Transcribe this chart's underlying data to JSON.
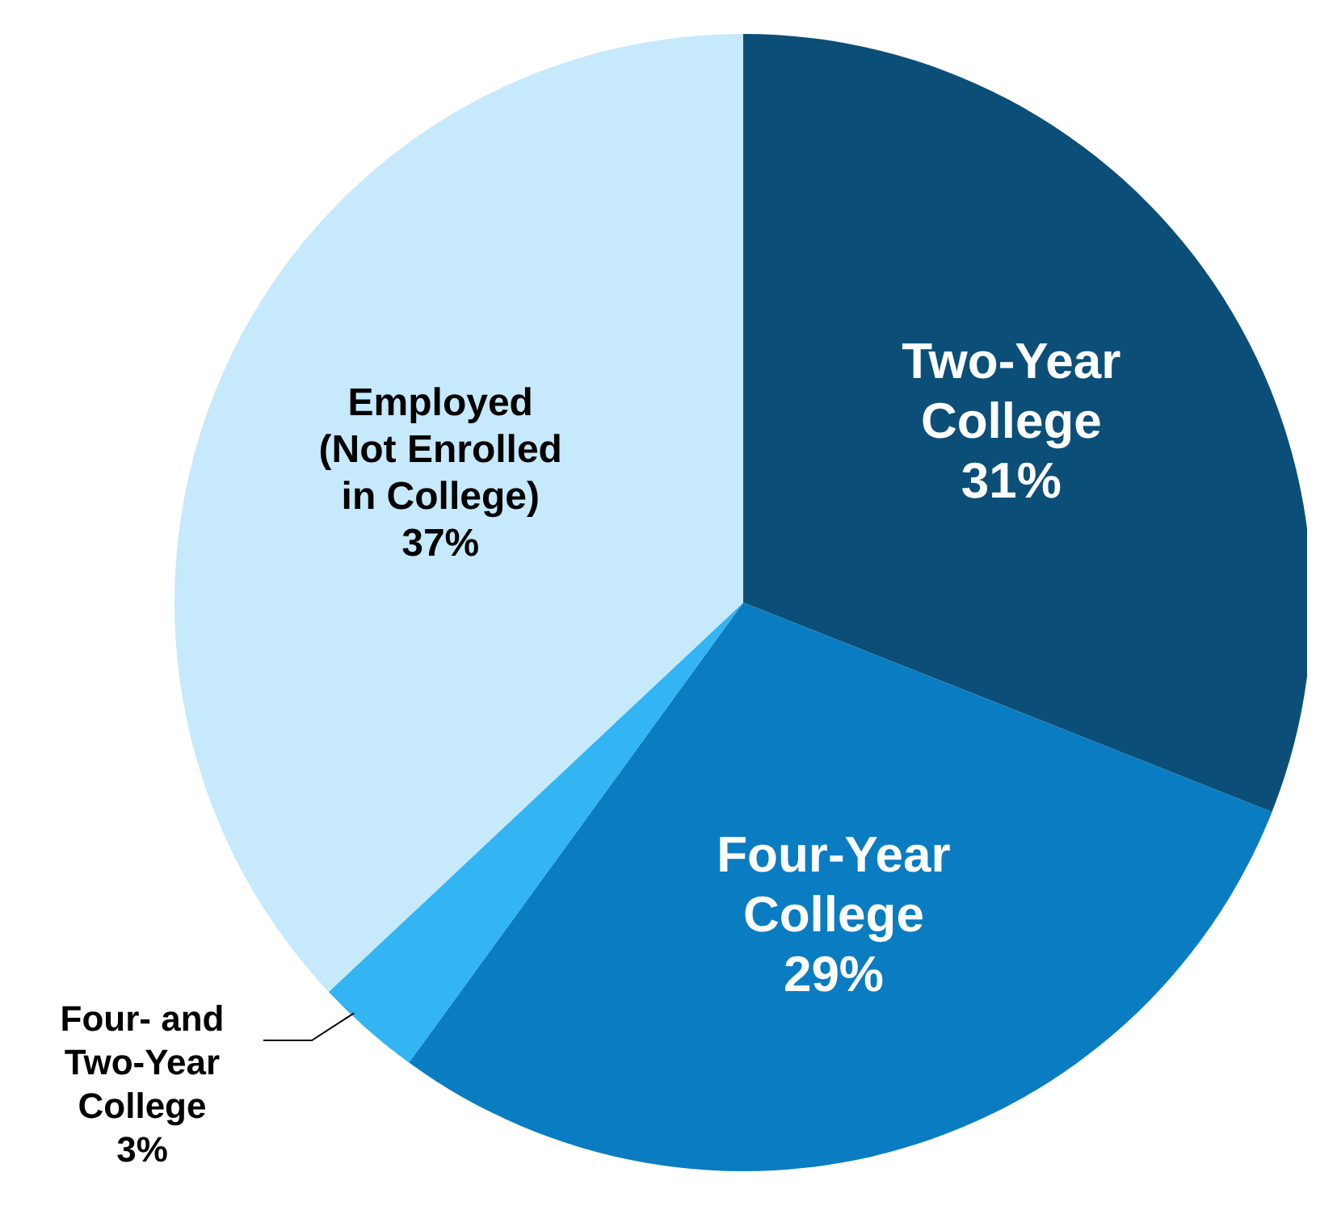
{
  "chart_data": {
    "type": "pie",
    "categories": [
      "Two-Year College",
      "Four-Year College",
      "Four- and Two-Year College",
      "Employed (Not Enrolled in College)"
    ],
    "values": [
      31,
      29,
      3,
      37
    ],
    "colors": [
      "#0b4f78",
      "#0a7cc2",
      "#33b4f3",
      "#c6e9fb"
    ],
    "value_labels": [
      "31%",
      "29%",
      "3%",
      "37%"
    ],
    "legend": false
  }
}
